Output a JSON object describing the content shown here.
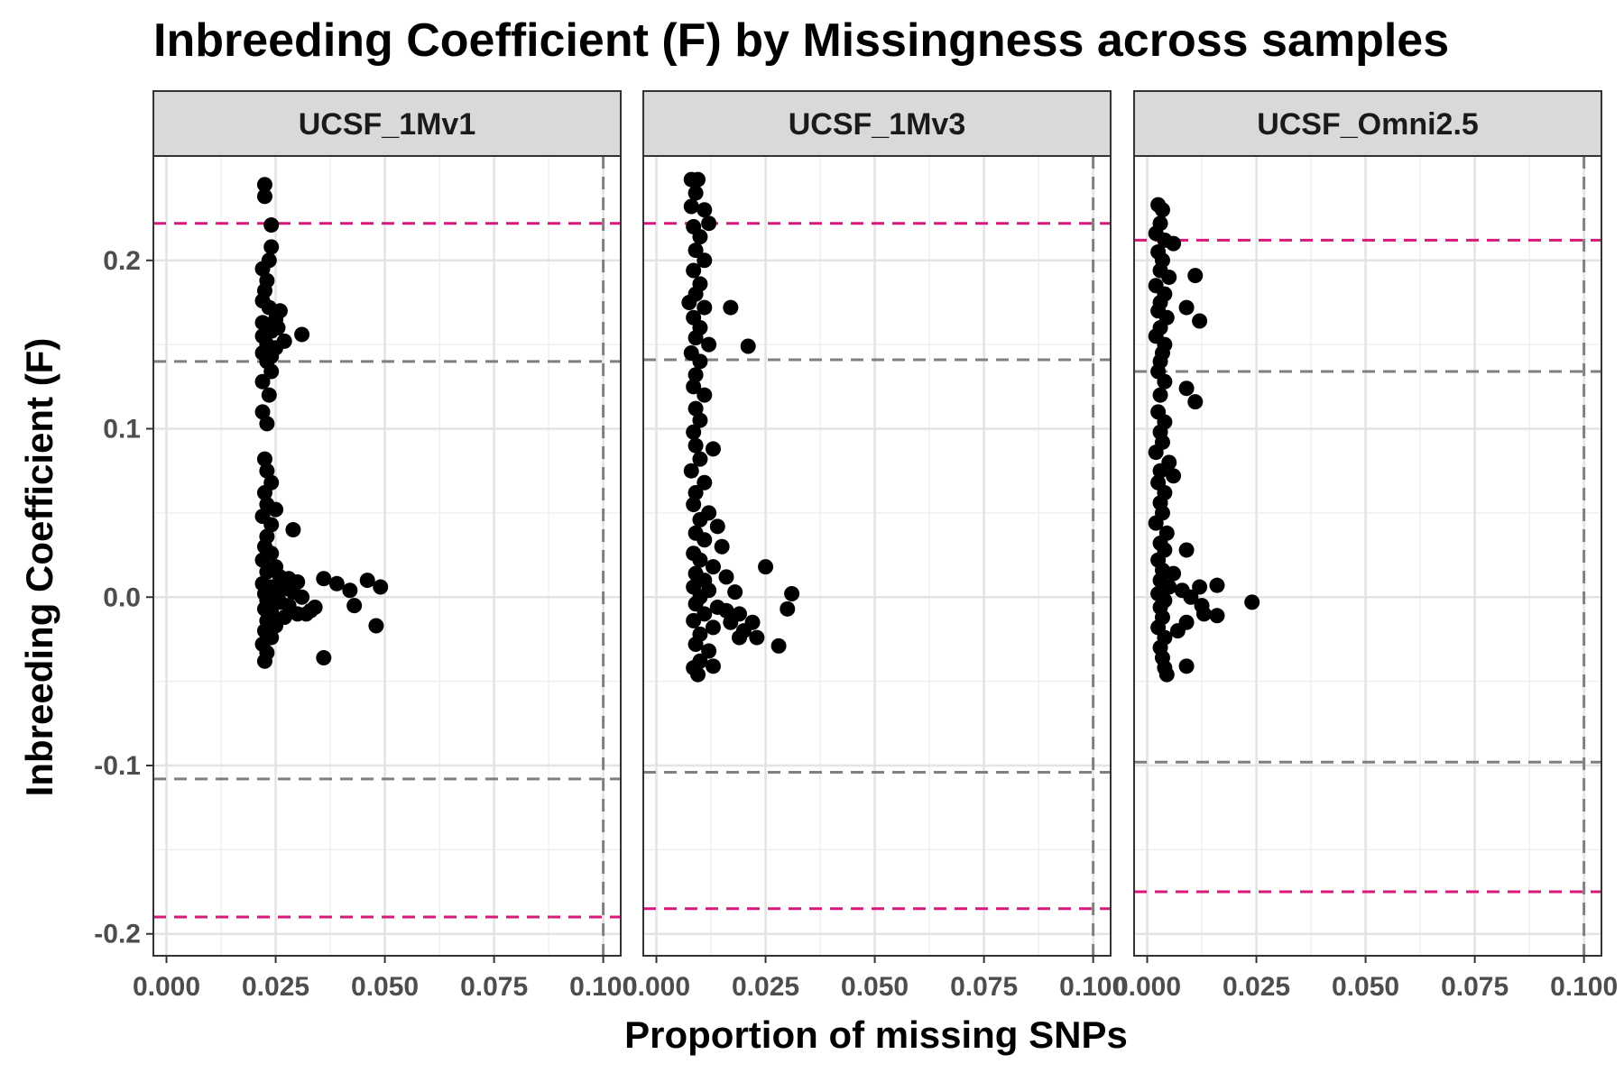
{
  "chart_data": {
    "type": "scatter",
    "title": "Inbreeding Coefficient (F) by Missingness across samples",
    "xlabel": "Proportion of missing SNPs",
    "ylabel": "Inbreeding Coefficient (F)",
    "xlim": [
      -0.003,
      0.104
    ],
    "ylim": [
      -0.213,
      0.262
    ],
    "x_ticks": [
      0,
      0.025,
      0.05,
      0.075,
      0.1
    ],
    "x_tick_labels": [
      "0.000",
      "0.025",
      "0.050",
      "0.075",
      "0.100"
    ],
    "y_ticks": [
      -0.2,
      -0.1,
      0,
      0.1,
      0.2
    ],
    "y_tick_labels": [
      "-0.2",
      "-0.1",
      "0.0",
      "0.1",
      "0.2"
    ],
    "grid": true,
    "colors": {
      "points": "#000000",
      "outer_threshold": "#d6197a",
      "inner_threshold": "#7f7f7f",
      "strip_bg": "#d9d9d9"
    },
    "panels": [
      {
        "name": "UCSF_1Mv1",
        "missingness_cutoff": 0.1,
        "f_lines_outer": [
          -0.19,
          0.222
        ],
        "f_lines_inner": [
          -0.108,
          0.14
        ],
        "points": [
          [
            0.0225,
            0.245
          ],
          [
            0.0225,
            0.238
          ],
          [
            0.024,
            0.221
          ],
          [
            0.024,
            0.208
          ],
          [
            0.0235,
            0.2
          ],
          [
            0.022,
            0.195
          ],
          [
            0.023,
            0.188
          ],
          [
            0.0225,
            0.182
          ],
          [
            0.022,
            0.176
          ],
          [
            0.0235,
            0.172
          ],
          [
            0.026,
            0.17
          ],
          [
            0.025,
            0.165
          ],
          [
            0.022,
            0.163
          ],
          [
            0.023,
            0.16
          ],
          [
            0.0255,
            0.16
          ],
          [
            0.024,
            0.158
          ],
          [
            0.022,
            0.155
          ],
          [
            0.031,
            0.156
          ],
          [
            0.027,
            0.152
          ],
          [
            0.023,
            0.15
          ],
          [
            0.025,
            0.148
          ],
          [
            0.022,
            0.145
          ],
          [
            0.024,
            0.143
          ],
          [
            0.023,
            0.14
          ],
          [
            0.024,
            0.134
          ],
          [
            0.022,
            0.128
          ],
          [
            0.0235,
            0.12
          ],
          [
            0.022,
            0.11
          ],
          [
            0.023,
            0.103
          ],
          [
            0.0225,
            0.082
          ],
          [
            0.023,
            0.075
          ],
          [
            0.024,
            0.068
          ],
          [
            0.0225,
            0.062
          ],
          [
            0.023,
            0.055
          ],
          [
            0.025,
            0.052
          ],
          [
            0.022,
            0.048
          ],
          [
            0.024,
            0.043
          ],
          [
            0.029,
            0.04
          ],
          [
            0.023,
            0.036
          ],
          [
            0.0225,
            0.03
          ],
          [
            0.024,
            0.026
          ],
          [
            0.022,
            0.022
          ],
          [
            0.025,
            0.018
          ],
          [
            0.023,
            0.015
          ],
          [
            0.026,
            0.012
          ],
          [
            0.028,
            0.011
          ],
          [
            0.03,
            0.009
          ],
          [
            0.022,
            0.008
          ],
          [
            0.024,
            0.006
          ],
          [
            0.027,
            0.005
          ],
          [
            0.029,
            0.003
          ],
          [
            0.0225,
            0.002
          ],
          [
            0.025,
            0.001
          ],
          [
            0.031,
            0.0
          ],
          [
            0.023,
            -0.002
          ],
          [
            0.026,
            -0.003
          ],
          [
            0.028,
            -0.005
          ],
          [
            0.0225,
            -0.007
          ],
          [
            0.024,
            -0.009
          ],
          [
            0.03,
            -0.01
          ],
          [
            0.033,
            -0.008
          ],
          [
            0.027,
            -0.012
          ],
          [
            0.023,
            -0.014
          ],
          [
            0.025,
            -0.017
          ],
          [
            0.0225,
            -0.02
          ],
          [
            0.024,
            -0.024
          ],
          [
            0.022,
            -0.028
          ],
          [
            0.023,
            -0.033
          ],
          [
            0.0225,
            -0.038
          ],
          [
            0.036,
            0.011
          ],
          [
            0.039,
            0.008
          ],
          [
            0.042,
            0.004
          ],
          [
            0.046,
            0.01
          ],
          [
            0.049,
            0.006
          ],
          [
            0.043,
            -0.005
          ],
          [
            0.048,
            -0.017
          ],
          [
            0.036,
            -0.036
          ],
          [
            0.032,
            -0.01
          ],
          [
            0.034,
            -0.006
          ]
        ]
      },
      {
        "name": "UCSF_1Mv3",
        "missingness_cutoff": 0.1,
        "f_lines_outer": [
          -0.185,
          0.222
        ],
        "f_lines_inner": [
          -0.104,
          0.141
        ],
        "points": [
          [
            0.008,
            0.248
          ],
          [
            0.0095,
            0.248
          ],
          [
            0.009,
            0.24
          ],
          [
            0.008,
            0.232
          ],
          [
            0.011,
            0.23
          ],
          [
            0.012,
            0.222
          ],
          [
            0.0085,
            0.22
          ],
          [
            0.01,
            0.214
          ],
          [
            0.009,
            0.206
          ],
          [
            0.011,
            0.2
          ],
          [
            0.0085,
            0.194
          ],
          [
            0.01,
            0.186
          ],
          [
            0.009,
            0.18
          ],
          [
            0.0075,
            0.175
          ],
          [
            0.011,
            0.172
          ],
          [
            0.017,
            0.172
          ],
          [
            0.0085,
            0.166
          ],
          [
            0.01,
            0.16
          ],
          [
            0.009,
            0.154
          ],
          [
            0.012,
            0.15
          ],
          [
            0.021,
            0.149
          ],
          [
            0.008,
            0.145
          ],
          [
            0.01,
            0.14
          ],
          [
            0.009,
            0.132
          ],
          [
            0.0085,
            0.125
          ],
          [
            0.011,
            0.12
          ],
          [
            0.009,
            0.112
          ],
          [
            0.01,
            0.105
          ],
          [
            0.0085,
            0.098
          ],
          [
            0.009,
            0.09
          ],
          [
            0.013,
            0.088
          ],
          [
            0.01,
            0.082
          ],
          [
            0.008,
            0.075
          ],
          [
            0.011,
            0.068
          ],
          [
            0.009,
            0.062
          ],
          [
            0.0085,
            0.055
          ],
          [
            0.012,
            0.05
          ],
          [
            0.01,
            0.046
          ],
          [
            0.014,
            0.042
          ],
          [
            0.009,
            0.038
          ],
          [
            0.011,
            0.034
          ],
          [
            0.015,
            0.03
          ],
          [
            0.0085,
            0.026
          ],
          [
            0.01,
            0.022
          ],
          [
            0.013,
            0.018
          ],
          [
            0.009,
            0.014
          ],
          [
            0.016,
            0.012
          ],
          [
            0.011,
            0.01
          ],
          [
            0.0085,
            0.006
          ],
          [
            0.012,
            0.004
          ],
          [
            0.018,
            0.003
          ],
          [
            0.01,
            0.0
          ],
          [
            0.009,
            -0.004
          ],
          [
            0.014,
            -0.006
          ],
          [
            0.011,
            -0.01
          ],
          [
            0.0085,
            -0.014
          ],
          [
            0.013,
            -0.018
          ],
          [
            0.01,
            -0.022
          ],
          [
            0.009,
            -0.028
          ],
          [
            0.012,
            -0.032
          ],
          [
            0.01,
            -0.038
          ],
          [
            0.0085,
            -0.042
          ],
          [
            0.0095,
            -0.046
          ],
          [
            0.013,
            -0.041
          ],
          [
            0.025,
            0.018
          ],
          [
            0.031,
            0.002
          ],
          [
            0.03,
            -0.007
          ],
          [
            0.019,
            -0.01
          ],
          [
            0.022,
            -0.015
          ],
          [
            0.02,
            -0.02
          ],
          [
            0.023,
            -0.024
          ],
          [
            0.019,
            -0.024
          ],
          [
            0.028,
            -0.029
          ],
          [
            0.016,
            -0.008
          ],
          [
            0.017,
            -0.015
          ]
        ]
      },
      {
        "name": "UCSF_Omni2.5",
        "missingness_cutoff": 0.1,
        "f_lines_outer": [
          -0.175,
          0.212
        ],
        "f_lines_inner": [
          -0.098,
          0.134
        ],
        "points": [
          [
            0.0025,
            0.233
          ],
          [
            0.0035,
            0.23
          ],
          [
            0.003,
            0.222
          ],
          [
            0.002,
            0.216
          ],
          [
            0.004,
            0.212
          ],
          [
            0.006,
            0.21
          ],
          [
            0.0025,
            0.205
          ],
          [
            0.0035,
            0.2
          ],
          [
            0.003,
            0.194
          ],
          [
            0.005,
            0.19
          ],
          [
            0.011,
            0.191
          ],
          [
            0.002,
            0.185
          ],
          [
            0.004,
            0.18
          ],
          [
            0.003,
            0.175
          ],
          [
            0.0025,
            0.17
          ],
          [
            0.009,
            0.172
          ],
          [
            0.0045,
            0.166
          ],
          [
            0.003,
            0.16
          ],
          [
            0.012,
            0.164
          ],
          [
            0.002,
            0.155
          ],
          [
            0.004,
            0.15
          ],
          [
            0.0035,
            0.145
          ],
          [
            0.003,
            0.14
          ],
          [
            0.0025,
            0.134
          ],
          [
            0.004,
            0.128
          ],
          [
            0.009,
            0.124
          ],
          [
            0.003,
            0.12
          ],
          [
            0.011,
            0.116
          ],
          [
            0.0025,
            0.11
          ],
          [
            0.004,
            0.104
          ],
          [
            0.003,
            0.098
          ],
          [
            0.0035,
            0.092
          ],
          [
            0.002,
            0.086
          ],
          [
            0.005,
            0.08
          ],
          [
            0.003,
            0.075
          ],
          [
            0.006,
            0.072
          ],
          [
            0.0025,
            0.068
          ],
          [
            0.004,
            0.062
          ],
          [
            0.003,
            0.056
          ],
          [
            0.0035,
            0.05
          ],
          [
            0.002,
            0.044
          ],
          [
            0.0045,
            0.038
          ],
          [
            0.003,
            0.032
          ],
          [
            0.004,
            0.028
          ],
          [
            0.009,
            0.028
          ],
          [
            0.0025,
            0.022
          ],
          [
            0.0035,
            0.016
          ],
          [
            0.006,
            0.014
          ],
          [
            0.003,
            0.01
          ],
          [
            0.005,
            0.006
          ],
          [
            0.0025,
            0.002
          ],
          [
            0.004,
            -0.002
          ],
          [
            0.003,
            -0.006
          ],
          [
            0.0035,
            -0.012
          ],
          [
            0.0025,
            -0.018
          ],
          [
            0.004,
            -0.024
          ],
          [
            0.003,
            -0.03
          ],
          [
            0.0035,
            -0.036
          ],
          [
            0.004,
            -0.042
          ],
          [
            0.0045,
            -0.046
          ],
          [
            0.009,
            -0.041
          ],
          [
            0.024,
            -0.003
          ],
          [
            0.016,
            0.007
          ],
          [
            0.012,
            0.006
          ],
          [
            0.01,
            0.0
          ],
          [
            0.0125,
            -0.005
          ],
          [
            0.016,
            -0.011
          ],
          [
            0.013,
            -0.01
          ],
          [
            0.009,
            -0.015
          ],
          [
            0.007,
            -0.02
          ],
          [
            0.008,
            0.004
          ]
        ]
      }
    ]
  }
}
